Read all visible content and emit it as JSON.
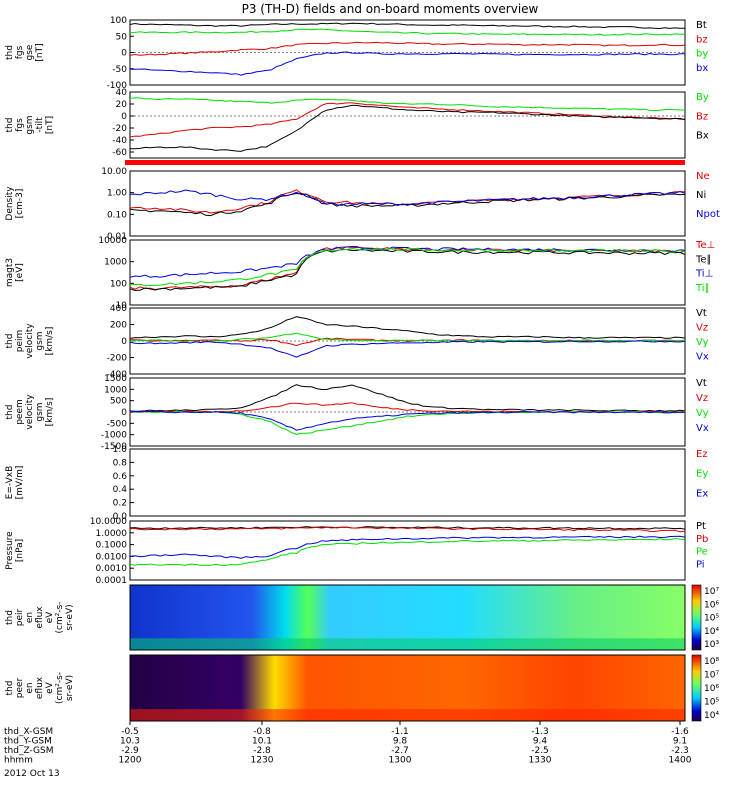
{
  "title": "P3 (TH-D) fields and on-board moments overview",
  "colors": {
    "black": "#000000",
    "red": "#dd0000",
    "green": "#00dd00",
    "blue": "#0000dd"
  },
  "chart_data": [
    {
      "type": "line",
      "panel": "fgs_gse",
      "ylabel": [
        "thd",
        "fgs",
        "gse",
        "[nT]"
      ],
      "ylim": [
        -100,
        100
      ],
      "yticks": [
        "100",
        "50",
        "0",
        "-50",
        "-100"
      ],
      "series": [
        {
          "name": "Bt",
          "color": "black",
          "values": [
            88,
            86,
            84,
            82,
            82,
            86,
            88,
            88,
            90,
            88,
            86,
            84,
            84,
            82,
            82,
            80,
            80,
            78,
            78,
            76,
            74
          ]
        },
        {
          "name": "bz",
          "color": "red",
          "values": [
            -8,
            -6,
            -2,
            2,
            8,
            12,
            24,
            28,
            30,
            30,
            28,
            26,
            26,
            26,
            24,
            24,
            24,
            22,
            22,
            24,
            22
          ]
        },
        {
          "name": "by",
          "color": "green",
          "values": [
            62,
            62,
            62,
            62,
            62,
            65,
            70,
            70,
            66,
            62,
            60,
            58,
            58,
            56,
            56,
            56,
            55,
            55,
            56,
            56,
            56
          ]
        },
        {
          "name": "bx",
          "color": "blue",
          "values": [
            -50,
            -55,
            -58,
            -62,
            -68,
            -55,
            -20,
            -2,
            0,
            -4,
            -4,
            -4,
            -4,
            -5,
            -6,
            -6,
            -6,
            -6,
            -5,
            -5,
            -5
          ]
        }
      ]
    },
    {
      "type": "line",
      "panel": "fgs_gsm",
      "ylabel": [
        "thd",
        "fgs",
        "gsm",
        "-tilt",
        "[nT]"
      ],
      "ylim": [
        -70,
        40
      ],
      "yticks": [
        "40",
        "20",
        "0",
        "-20",
        "-40",
        "-60"
      ],
      "series": [
        {
          "name": "By",
          "color": "green",
          "values": [
            30,
            28,
            28,
            26,
            24,
            22,
            26,
            28,
            26,
            22,
            20,
            20,
            18,
            16,
            15,
            14,
            13,
            12,
            11,
            10,
            10
          ]
        },
        {
          "name": "Bz",
          "color": "red",
          "values": [
            -35,
            -30,
            -24,
            -20,
            -18,
            -14,
            -5,
            20,
            22,
            18,
            14,
            12,
            10,
            8,
            6,
            4,
            2,
            0,
            -2,
            -4,
            -5
          ]
        },
        {
          "name": "Bx",
          "color": "black",
          "values": [
            -55,
            -52,
            -52,
            -56,
            -58,
            -50,
            -25,
            10,
            18,
            14,
            10,
            8,
            6,
            6,
            4,
            2,
            0,
            -2,
            -2,
            -4,
            -5
          ]
        }
      ]
    },
    {
      "type": "line",
      "panel": "density",
      "ylabel": [
        "Density",
        "[cm-3]"
      ],
      "yscale": "log",
      "yticks": [
        "10.00",
        "1.00",
        "0.10",
        "0.01"
      ],
      "series": [
        {
          "name": "Ne",
          "color": "red",
          "values": [
            0.2,
            0.2,
            0.15,
            0.12,
            0.2,
            0.35,
            1.2,
            0.4,
            0.35,
            0.3,
            0.3,
            0.35,
            0.4,
            0.45,
            0.5,
            0.55,
            0.6,
            0.7,
            0.8,
            0.9,
            1.0
          ]
        },
        {
          "name": "Ni",
          "color": "black",
          "values": [
            0.15,
            0.15,
            0.12,
            0.1,
            0.15,
            0.3,
            1.0,
            0.3,
            0.25,
            0.25,
            0.25,
            0.3,
            0.35,
            0.4,
            0.45,
            0.5,
            0.55,
            0.6,
            0.7,
            0.8,
            0.8
          ]
        },
        {
          "name": "Npot",
          "color": "blue",
          "values": [
            0.8,
            1.0,
            1.2,
            0.8,
            0.5,
            0.5,
            1.0,
            0.3,
            0.3,
            0.3,
            0.3,
            0.35,
            0.4,
            0.45,
            0.5,
            0.55,
            0.6,
            0.7,
            0.8,
            0.9,
            1.0
          ]
        }
      ],
      "legend_extra": []
    },
    {
      "type": "line",
      "panel": "temperature",
      "ylabel": [
        "magt3",
        "[eV]"
      ],
      "yscale": "log",
      "yticks": [
        "10000",
        "1000",
        "100",
        "10"
      ],
      "series": [
        {
          "name": "Te⊥",
          "color": "red",
          "values": [
            60,
            60,
            65,
            70,
            80,
            150,
            300,
            4000,
            4500,
            4000,
            3800,
            3600,
            3500,
            3400,
            3300,
            3300,
            3200,
            3200,
            3100,
            3100,
            3000
          ]
        },
        {
          "name": "Te∥",
          "color": "black",
          "values": [
            55,
            55,
            60,
            65,
            70,
            140,
            250,
            3000,
            3500,
            3200,
            3000,
            2900,
            2800,
            2800,
            2700,
            2700,
            2600,
            2600,
            2500,
            2500,
            2500
          ]
        },
        {
          "name": "Ti⊥",
          "color": "blue",
          "values": [
            200,
            220,
            250,
            300,
            350,
            500,
            800,
            3500,
            4500,
            4200,
            4000,
            3800,
            3800,
            3700,
            3600,
            3600,
            3500,
            3500,
            3400,
            3400,
            3300
          ]
        },
        {
          "name": "Ti∥",
          "color": "green",
          "values": [
            80,
            90,
            100,
            120,
            150,
            250,
            400,
            3200,
            4000,
            3800,
            3600,
            3500,
            3400,
            3400,
            3300,
            3300,
            3200,
            3200,
            3100,
            3100,
            3000
          ]
        }
      ]
    },
    {
      "type": "line",
      "panel": "peim_velocity",
      "ylabel": [
        "thd",
        "peim",
        "velocity",
        "gsm",
        "[km/s]"
      ],
      "ylim": [
        -400,
        400
      ],
      "yticks": [
        "400",
        "200",
        "0",
        "-200",
        "-400"
      ],
      "series": [
        {
          "name": "Vt",
          "color": "black",
          "values": [
            40,
            50,
            60,
            50,
            80,
            150,
            300,
            200,
            180,
            150,
            120,
            80,
            60,
            50,
            50,
            50,
            40,
            40,
            40,
            40,
            40
          ]
        },
        {
          "name": "Vz",
          "color": "red",
          "values": [
            10,
            0,
            5,
            10,
            0,
            20,
            -50,
            30,
            20,
            10,
            0,
            5,
            10,
            5,
            0,
            5,
            5,
            0,
            5,
            5,
            5
          ]
        },
        {
          "name": "Vy",
          "color": "green",
          "values": [
            0,
            10,
            0,
            -10,
            20,
            40,
            100,
            20,
            10,
            0,
            10,
            5,
            0,
            5,
            5,
            0,
            5,
            5,
            0,
            5,
            5
          ]
        },
        {
          "name": "Vx",
          "color": "blue",
          "values": [
            -20,
            -30,
            -20,
            -10,
            -40,
            -80,
            -200,
            -60,
            -40,
            -30,
            -20,
            -20,
            -10,
            -10,
            -10,
            -10,
            -5,
            -5,
            -5,
            -5,
            -5
          ]
        }
      ]
    },
    {
      "type": "line",
      "panel": "peem_velocity",
      "ylabel": [
        "thd",
        "peem",
        "velocity",
        "gsm",
        "[km/s]"
      ],
      "ylim": [
        -1500,
        1500
      ],
      "yticks": [
        "1500",
        "1000",
        "500",
        "0",
        "-500",
        "-1000",
        "-1500"
      ],
      "series": [
        {
          "name": "Vt",
          "color": "black",
          "values": [
            50,
            60,
            80,
            100,
            200,
            600,
            1200,
            1000,
            1200,
            800,
            400,
            200,
            150,
            100,
            100,
            80,
            80,
            60,
            60,
            60,
            60
          ]
        },
        {
          "name": "Vz",
          "color": "red",
          "values": [
            0,
            10,
            20,
            10,
            50,
            200,
            400,
            300,
            400,
            200,
            100,
            50,
            30,
            20,
            20,
            10,
            10,
            10,
            10,
            10,
            10
          ]
        },
        {
          "name": "Vy",
          "color": "green",
          "values": [
            0,
            -10,
            0,
            10,
            -100,
            -400,
            -1000,
            -800,
            -600,
            -400,
            -200,
            -100,
            -50,
            -30,
            -20,
            -10,
            -10,
            -10,
            -10,
            -10,
            -10
          ]
        },
        {
          "name": "Vx",
          "color": "blue",
          "values": [
            0,
            0,
            -10,
            0,
            -50,
            -300,
            -800,
            -500,
            -300,
            -200,
            -100,
            -50,
            -30,
            -20,
            -10,
            -10,
            -10,
            -10,
            -10,
            -10,
            -10
          ]
        }
      ]
    },
    {
      "type": "line",
      "panel": "efield",
      "ylabel": [
        "E=-VxB",
        "[mV/m]"
      ],
      "ylim": [
        0,
        1
      ],
      "yticks": [
        "1.0",
        "0.8",
        "0.6",
        "0.4",
        "0.2",
        "0.0"
      ],
      "series": [
        {
          "name": "Ez",
          "color": "red",
          "values": []
        },
        {
          "name": "Ey",
          "color": "green",
          "values": []
        },
        {
          "name": "Ex",
          "color": "blue",
          "values": []
        }
      ]
    },
    {
      "type": "line",
      "panel": "pressure",
      "ylabel": [
        "Pressure",
        "[nPa]"
      ],
      "yscale": "log",
      "yticks": [
        "10.0000",
        "1.0000",
        "0.1000",
        "0.0100",
        "0.0010",
        "0.0001"
      ],
      "series": [
        {
          "name": "Pt",
          "color": "black",
          "values": [
            2.5,
            2.5,
            2.6,
            2.6,
            2.6,
            2.8,
            3.0,
            3.0,
            3.0,
            2.9,
            2.8,
            2.8,
            2.7,
            2.7,
            2.6,
            2.6,
            2.5,
            2.5,
            2.4,
            2.4,
            2.4
          ]
        },
        {
          "name": "Pb",
          "color": "red",
          "values": [
            2.0,
            2.0,
            2.1,
            2.1,
            2.1,
            2.3,
            2.5,
            2.8,
            2.8,
            2.6,
            2.4,
            2.3,
            2.2,
            2.1,
            2.0,
            1.9,
            1.8,
            1.7,
            1.6,
            1.5,
            1.4
          ]
        },
        {
          "name": "Pe",
          "color": "green",
          "values": [
            0.002,
            0.002,
            0.002,
            0.002,
            0.002,
            0.005,
            0.02,
            0.1,
            0.12,
            0.15,
            0.15,
            0.18,
            0.2,
            0.2,
            0.22,
            0.22,
            0.24,
            0.25,
            0.26,
            0.27,
            0.3
          ]
        },
        {
          "name": "Pi",
          "color": "blue",
          "values": [
            0.01,
            0.012,
            0.015,
            0.01,
            0.008,
            0.01,
            0.05,
            0.2,
            0.25,
            0.3,
            0.32,
            0.35,
            0.38,
            0.4,
            0.4,
            0.42,
            0.42,
            0.44,
            0.45,
            0.46,
            0.48
          ]
        }
      ]
    },
    {
      "type": "heatmap",
      "panel": "peir_eflux",
      "ylabel": [
        "thd",
        "peir",
        "en",
        "eflux",
        "eV",
        "(cm²-s-",
        "sr-eV)"
      ],
      "yscale": "log",
      "yticks": [
        "10000",
        "1000",
        "100",
        "10"
      ],
      "colorbar_ticks": [
        "10⁷",
        "10⁶",
        "10⁵",
        "10⁴",
        "10³"
      ]
    },
    {
      "type": "heatmap",
      "panel": "peer_eflux",
      "ylabel": [
        "thd",
        "peer",
        "en",
        "eflux",
        "eV",
        "(cm²-s-",
        "sr-eV)"
      ],
      "yscale": "log",
      "yticks": [
        "10000",
        "1000",
        "100",
        "10"
      ],
      "colorbar_ticks": [
        "10⁸",
        "10⁷",
        "10⁶",
        "10⁵",
        "10⁴"
      ]
    }
  ],
  "xaxis": {
    "rows": [
      {
        "label": "thd_X-GSM",
        "values": [
          "-0.5",
          "-0.8",
          "-1.1",
          "-1.3",
          "-1.6"
        ]
      },
      {
        "label": "thd_Y-GSM",
        "values": [
          "10.3",
          "10.1",
          "9.8",
          "9.4",
          "9.1"
        ]
      },
      {
        "label": "thd_Z-GSM",
        "values": [
          "-2.9",
          "-2.8",
          "-2.7",
          "-2.5",
          "-2.3"
        ]
      },
      {
        "label": "hhmm",
        "values": [
          "1200",
          "1230",
          "1300",
          "1330",
          "1400"
        ]
      }
    ],
    "date": "2012 Oct 13"
  }
}
